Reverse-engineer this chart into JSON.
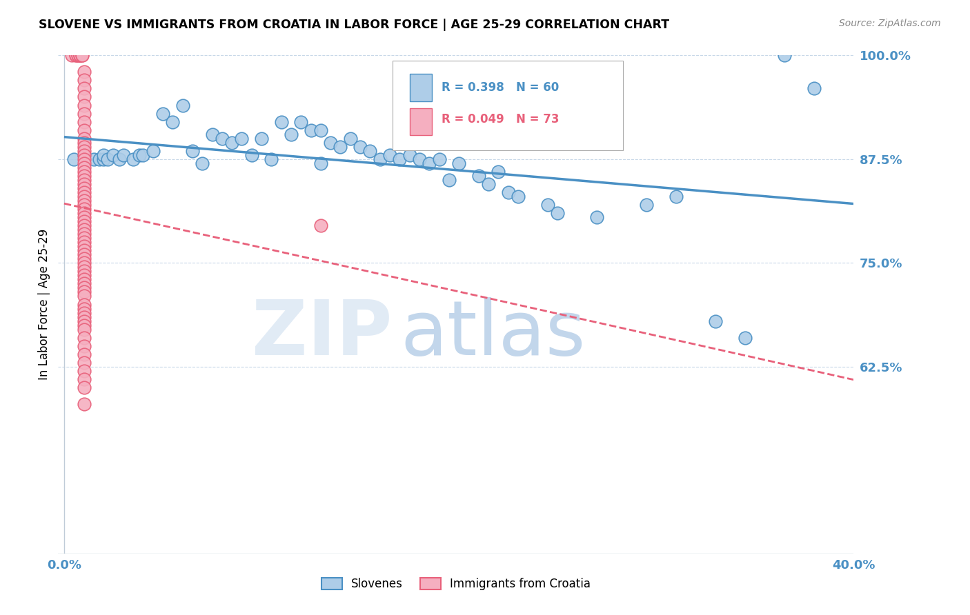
{
  "title": "SLOVENE VS IMMIGRANTS FROM CROATIA IN LABOR FORCE | AGE 25-29 CORRELATION CHART",
  "source": "Source: ZipAtlas.com",
  "ylabel": "In Labor Force | Age 25-29",
  "xlim": [
    0.0,
    0.4
  ],
  "ylim": [
    0.4,
    1.0
  ],
  "yticks": [
    1.0,
    0.875,
    0.75,
    0.625
  ],
  "ytick_labels": [
    "100.0%",
    "87.5%",
    "75.0%",
    "62.5%"
  ],
  "xticks": [
    0.0,
    0.1,
    0.2,
    0.3,
    0.4
  ],
  "xtick_labels": [
    "0.0%",
    "",
    "",
    "",
    "40.0%"
  ],
  "blue_color": "#aecde8",
  "pink_color": "#f5afc0",
  "blue_line_color": "#4a90c4",
  "pink_line_color": "#e8607a",
  "grid_color": "#c8d8e8",
  "tick_color": "#4a90c4",
  "legend_R_blue": "R = 0.398",
  "legend_N_blue": "N = 60",
  "legend_R_pink": "R = 0.049",
  "legend_N_pink": "N = 73",
  "legend_label_blue": "Slovenes",
  "legend_label_pink": "Immigrants from Croatia",
  "blue_scatter_x": [
    0.005,
    0.01,
    0.015,
    0.018,
    0.02,
    0.02,
    0.022,
    0.025,
    0.028,
    0.03,
    0.035,
    0.038,
    0.04,
    0.045,
    0.05,
    0.055,
    0.06,
    0.065,
    0.07,
    0.075,
    0.08,
    0.085,
    0.09,
    0.095,
    0.1,
    0.105,
    0.11,
    0.115,
    0.12,
    0.125,
    0.13,
    0.13,
    0.135,
    0.14,
    0.145,
    0.15,
    0.155,
    0.16,
    0.165,
    0.17,
    0.175,
    0.18,
    0.185,
    0.19,
    0.195,
    0.2,
    0.21,
    0.215,
    0.22,
    0.225,
    0.23,
    0.245,
    0.25,
    0.27,
    0.295,
    0.31,
    0.33,
    0.345,
    0.365,
    0.38
  ],
  "blue_scatter_y": [
    0.875,
    0.88,
    0.875,
    0.875,
    0.875,
    0.88,
    0.875,
    0.88,
    0.875,
    0.88,
    0.875,
    0.88,
    0.88,
    0.885,
    0.93,
    0.92,
    0.94,
    0.885,
    0.87,
    0.905,
    0.9,
    0.895,
    0.9,
    0.88,
    0.9,
    0.875,
    0.92,
    0.905,
    0.92,
    0.91,
    0.87,
    0.91,
    0.895,
    0.89,
    0.9,
    0.89,
    0.885,
    0.875,
    0.88,
    0.875,
    0.88,
    0.875,
    0.87,
    0.875,
    0.85,
    0.87,
    0.855,
    0.845,
    0.86,
    0.835,
    0.83,
    0.82,
    0.81,
    0.805,
    0.82,
    0.83,
    0.68,
    0.66,
    1.0,
    0.96
  ],
  "pink_scatter_x": [
    0.004,
    0.006,
    0.006,
    0.007,
    0.007,
    0.008,
    0.008,
    0.008,
    0.009,
    0.009,
    0.01,
    0.01,
    0.01,
    0.01,
    0.01,
    0.01,
    0.01,
    0.01,
    0.01,
    0.01,
    0.01,
    0.01,
    0.01,
    0.01,
    0.01,
    0.01,
    0.01,
    0.01,
    0.01,
    0.01,
    0.01,
    0.01,
    0.01,
    0.01,
    0.01,
    0.01,
    0.01,
    0.01,
    0.01,
    0.01,
    0.01,
    0.01,
    0.01,
    0.01,
    0.01,
    0.01,
    0.01,
    0.01,
    0.01,
    0.01,
    0.01,
    0.01,
    0.01,
    0.01,
    0.01,
    0.01,
    0.01,
    0.01,
    0.01,
    0.01,
    0.01,
    0.01,
    0.01,
    0.01,
    0.01,
    0.01,
    0.01,
    0.01,
    0.01,
    0.01,
    0.01,
    0.01,
    0.13
  ],
  "pink_scatter_y": [
    1.0,
    1.0,
    1.0,
    1.0,
    1.0,
    1.0,
    1.0,
    1.0,
    1.0,
    1.0,
    0.98,
    0.97,
    0.96,
    0.95,
    0.94,
    0.93,
    0.92,
    0.91,
    0.9,
    0.895,
    0.89,
    0.885,
    0.88,
    0.875,
    0.87,
    0.865,
    0.86,
    0.855,
    0.85,
    0.845,
    0.84,
    0.835,
    0.83,
    0.825,
    0.82,
    0.815,
    0.81,
    0.805,
    0.8,
    0.795,
    0.79,
    0.785,
    0.78,
    0.775,
    0.77,
    0.765,
    0.76,
    0.755,
    0.75,
    0.745,
    0.74,
    0.735,
    0.73,
    0.725,
    0.72,
    0.715,
    0.71,
    0.7,
    0.695,
    0.69,
    0.685,
    0.68,
    0.675,
    0.67,
    0.66,
    0.65,
    0.64,
    0.63,
    0.62,
    0.61,
    0.6,
    0.58,
    0.795
  ]
}
